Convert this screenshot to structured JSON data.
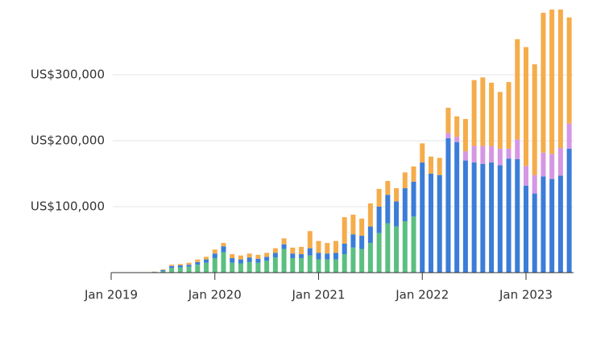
{
  "chart_data": {
    "type": "stacked-bar",
    "categories": [
      "Jan 2019",
      null,
      null,
      null,
      null,
      null,
      null,
      null,
      null,
      null,
      null,
      null,
      "Jan 2020",
      null,
      null,
      null,
      null,
      null,
      null,
      null,
      null,
      null,
      null,
      null,
      "Jan 2021",
      null,
      null,
      null,
      null,
      null,
      null,
      null,
      null,
      null,
      null,
      null,
      "Jan 2022",
      null,
      null,
      null,
      null,
      null,
      null,
      null,
      null,
      null,
      null,
      null,
      "Jan 2023",
      null,
      null,
      null,
      null,
      null
    ],
    "series": [
      {
        "color": "#5bbf80",
        "values": [
          0,
          0,
          0,
          0,
          0,
          0,
          2000,
          7000,
          8000,
          9000,
          12000,
          15000,
          22000,
          31000,
          15000,
          14000,
          16000,
          15000,
          18000,
          23000,
          36000,
          22000,
          22000,
          26000,
          20000,
          20000,
          20000,
          28000,
          38000,
          36000,
          45000,
          60000,
          75000,
          70000,
          78000,
          85000,
          0,
          0,
          0,
          0,
          0,
          0,
          0,
          0,
          0,
          0,
          0,
          0,
          0,
          0,
          0,
          0,
          0,
          0
        ]
      },
      {
        "color": "#3b7dd8",
        "values": [
          0,
          0,
          0,
          0,
          0,
          1000,
          2000,
          3000,
          3000,
          3000,
          4000,
          5000,
          7000,
          9000,
          7000,
          6000,
          7000,
          6000,
          6000,
          7000,
          7000,
          7000,
          6000,
          11000,
          10000,
          9000,
          10000,
          16000,
          20000,
          20000,
          25000,
          40000,
          43000,
          38000,
          50000,
          53000,
          167000,
          150000,
          148000,
          204000,
          198000,
          170000,
          167000,
          165000,
          167000,
          163000,
          173000,
          172000,
          132000,
          120000,
          146000,
          142000,
          147000,
          188000
        ]
      },
      {
        "color": "#d597e4",
        "values": [
          0,
          0,
          0,
          0,
          0,
          0,
          0,
          0,
          0,
          0,
          0,
          0,
          0,
          0,
          0,
          0,
          0,
          0,
          0,
          0,
          0,
          0,
          0,
          0,
          0,
          0,
          0,
          0,
          0,
          0,
          0,
          0,
          0,
          0,
          0,
          0,
          0,
          0,
          0,
          8000,
          8000,
          14000,
          25000,
          27000,
          25000,
          25000,
          15000,
          30000,
          30000,
          28000,
          36000,
          38000,
          42000,
          38000
        ]
      },
      {
        "color": "#f5ac4a",
        "values": [
          0,
          0,
          0,
          0,
          0,
          500,
          1000,
          2000,
          2000,
          3000,
          4000,
          4000,
          6000,
          5000,
          6000,
          6000,
          6000,
          6000,
          6000,
          7000,
          9000,
          9000,
          11000,
          26000,
          18000,
          16000,
          18000,
          40000,
          30000,
          26000,
          35000,
          27000,
          21000,
          20000,
          24000,
          23000,
          29000,
          26000,
          26000,
          38000,
          31000,
          49000,
          100000,
          104000,
          96000,
          86000,
          101000,
          152000,
          180000,
          168000,
          212000,
          219000,
          210000,
          161000
        ]
      }
    ],
    "ylim": [
      0,
      400000
    ],
    "yticks": [
      {
        "value": 100000,
        "label": "US$100,000"
      },
      {
        "value": 200000,
        "label": "US$200,000"
      },
      {
        "value": 300000,
        "label": "US$300,000"
      }
    ],
    "grid": true
  }
}
